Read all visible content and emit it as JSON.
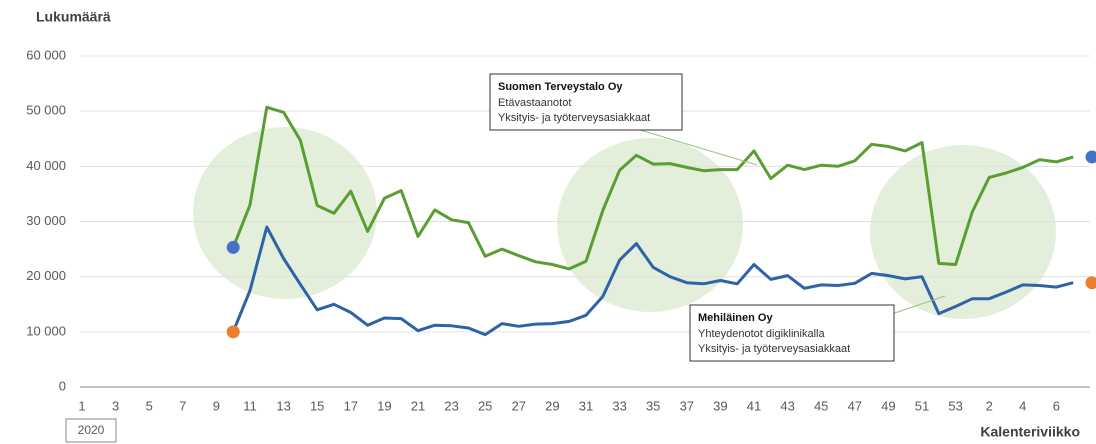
{
  "chart_data": {
    "type": "line",
    "ylabel": "Lukumäärä",
    "xlabel": "Kalenteriviikko",
    "year_label": "2020",
    "categories": [
      "1",
      null,
      "3",
      null,
      "5",
      null,
      "7",
      null,
      "9",
      null,
      "11",
      null,
      "13",
      null,
      "15",
      null,
      "17",
      null,
      "19",
      null,
      "21",
      null,
      "23",
      null,
      "25",
      null,
      "27",
      null,
      "29",
      null,
      "31",
      null,
      "33",
      null,
      "35",
      null,
      "37",
      null,
      "39",
      null,
      "41",
      null,
      "43",
      null,
      "45",
      null,
      "47",
      null,
      "49",
      null,
      "51",
      null,
      "53",
      null,
      "2",
      null,
      "4",
      null,
      "6",
      null
    ],
    "ylim": [
      0,
      60000
    ],
    "yticks": [
      0,
      {
        "value": 10000,
        "label": "10 000"
      },
      {
        "value": 20000,
        "label": "20 000"
      },
      {
        "value": 30000,
        "label": "30 000"
      },
      {
        "value": 40000,
        "label": "40 000"
      },
      {
        "value": 50000,
        "label": "50 000"
      },
      {
        "value": 60000,
        "label": "60 000"
      }
    ],
    "grid": true,
    "series": [
      {
        "name": "Suomen Terveystalo Oy",
        "color": "#5a9e33",
        "marker_color": "#4472c4",
        "notes": [
          "Etävastaanotot",
          "Yksityis- ja työterveysasiakkaat"
        ],
        "values": [
          null,
          null,
          null,
          null,
          null,
          null,
          null,
          null,
          null,
          25300,
          33000,
          50700,
          49800,
          44700,
          32900,
          31500,
          35500,
          28200,
          34200,
          35600,
          27300,
          32100,
          30300,
          29800,
          23700,
          25000,
          23800,
          22700,
          22200,
          21400,
          22800,
          32000,
          39300,
          42000,
          40400,
          40500,
          39800,
          39200,
          39400,
          39400,
          42800,
          37800,
          40200,
          39400,
          40200,
          40000,
          41000,
          44000,
          43600,
          42800,
          44300,
          22400,
          22200,
          31800,
          38000,
          38800,
          39800,
          41200,
          40800,
          41700
        ]
      },
      {
        "name": "Mehiläinen Oy",
        "color": "#2e63a8",
        "marker_color": "#ed7d31",
        "notes": [
          "Yhteydenotot digiklinikalla",
          "Yksityis- ja työterveysasiakkaat"
        ],
        "values": [
          null,
          null,
          null,
          null,
          null,
          null,
          null,
          null,
          null,
          10000,
          17500,
          29000,
          23300,
          18600,
          14000,
          15000,
          13500,
          11200,
          12500,
          12400,
          10200,
          11200,
          11100,
          10700,
          9500,
          11500,
          11000,
          11400,
          11500,
          11900,
          13000,
          16400,
          23000,
          26000,
          21700,
          20000,
          18900,
          18700,
          19300,
          18700,
          22200,
          19500,
          20200,
          17900,
          18500,
          18400,
          18800,
          20600,
          20200,
          19600,
          20000,
          13300,
          14600,
          16000,
          16000,
          17200,
          18500,
          18400,
          18100,
          18900
        ]
      }
    ]
  }
}
